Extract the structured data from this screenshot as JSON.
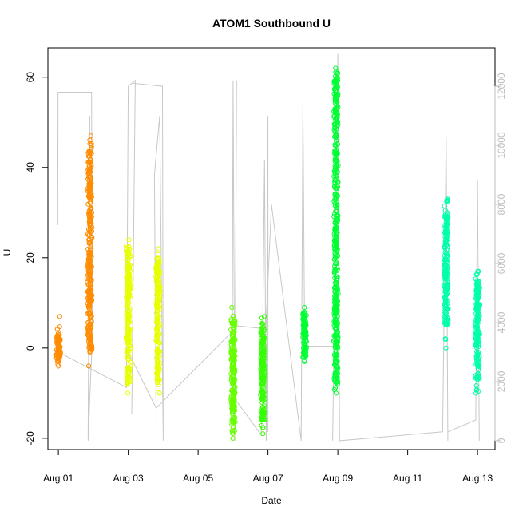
{
  "chart_data": {
    "type": "scatter",
    "title": "ATOM1 Southbound U",
    "xlabel": "Date",
    "ylabel": "U",
    "x_tick_labels": [
      "Aug 01",
      "Aug 03",
      "Aug 05",
      "Aug 07",
      "Aug 09",
      "Aug 11",
      "Aug 13"
    ],
    "x_ticks": [
      1,
      3,
      5,
      7,
      9,
      11,
      13
    ],
    "xlim": [
      0.7,
      13.5
    ],
    "y_ticks": [
      -20,
      0,
      20,
      40,
      60
    ],
    "y_tick_labels": [
      "-20",
      "0",
      "20",
      "40",
      "60"
    ],
    "ylim": [
      -22.5,
      66.5
    ],
    "y2_ticks": [
      0,
      2000,
      4000,
      6000,
      8000,
      10000,
      12000
    ],
    "y2_tick_labels": [
      "0",
      "2000",
      "4000",
      "6000",
      "8000",
      "10000",
      "12000"
    ],
    "y2lim": [
      -300,
      13300
    ],
    "grid": false,
    "legend": "none",
    "series": [
      {
        "color": "#ff8c00",
        "clusters": [
          {
            "x": 1.0,
            "lo": -4,
            "hi": 7,
            "core_lo": -3,
            "core_hi": 3
          },
          {
            "x": 1.9,
            "lo": -4,
            "hi": 47,
            "core_lo": -1,
            "core_hi": 45
          }
        ]
      },
      {
        "color": "#e8ff00",
        "clusters": [
          {
            "x": 3.0,
            "lo": -10,
            "hi": 24,
            "core_lo": -8,
            "core_hi": 22
          },
          {
            "x": 3.85,
            "lo": -10,
            "hi": 22,
            "core_lo": -8,
            "core_hi": 20
          }
        ]
      },
      {
        "color": "#66ff00",
        "clusters": [
          {
            "x": 6.0,
            "lo": -20,
            "hi": 9,
            "core_lo": -17,
            "core_hi": 6
          }
        ]
      },
      {
        "color": "#33ff00",
        "clusters": [
          {
            "x": 6.85,
            "lo": -19,
            "hi": 7,
            "core_lo": -16,
            "core_hi": 5
          }
        ]
      },
      {
        "color": "#00ff33",
        "clusters": [
          {
            "x": 8.05,
            "lo": -3,
            "hi": 9,
            "core_lo": -2,
            "core_hi": 8
          },
          {
            "x": 8.95,
            "lo": -10,
            "hi": 62,
            "core_lo": -8,
            "core_hi": 60
          }
        ]
      },
      {
        "color": "#00ffaa",
        "clusters": [
          {
            "x": 12.1,
            "lo": 0,
            "hi": 33,
            "core_lo": 5,
            "core_hi": 30
          },
          {
            "x": 13.0,
            "lo": -10,
            "hi": 17,
            "core_lo": -7,
            "core_hi": 15
          }
        ]
      }
    ],
    "secondary_series": {
      "color": "#c8c8c8",
      "segments": [
        [
          [
            0.98,
            7300
          ],
          [
            0.99,
            11800
          ],
          [
            1.95,
            11800
          ],
          [
            1.97,
            3500
          ],
          [
            1.85,
            0
          ],
          [
            1.9,
            11000
          ]
        ],
        [
          [
            1.0,
            3000
          ],
          [
            2.95,
            1800
          ],
          [
            3.0,
            12000
          ],
          [
            3.2,
            12200
          ],
          [
            3.1,
            900
          ]
        ],
        [
          [
            3.15,
            12100
          ],
          [
            3.98,
            12000
          ],
          [
            4.0,
            0
          ],
          [
            3.9,
            11000
          ],
          [
            3.75,
            9000
          ],
          [
            3.8,
            500
          ]
        ],
        [
          [
            3.0,
            3000
          ],
          [
            3.8,
            1100
          ],
          [
            5.98,
            3700
          ],
          [
            6.0,
            12200
          ],
          [
            6.05,
            0
          ],
          [
            6.1,
            12200
          ]
        ],
        [
          [
            6.05,
            3900
          ],
          [
            6.85,
            3800
          ],
          [
            6.9,
            9500
          ],
          [
            6.95,
            0
          ],
          [
            7.0,
            11000
          ],
          [
            7.0,
            300
          ]
        ],
        [
          [
            6.0,
            1500
          ],
          [
            6.8,
            200
          ],
          [
            7.1,
            8000
          ],
          [
            7.95,
            0
          ],
          [
            8.0,
            11400
          ],
          [
            8.05,
            3200
          ],
          [
            8.95,
            3200
          ]
        ],
        [
          [
            8.85,
            0
          ],
          [
            9.0,
            13100
          ],
          [
            9.05,
            0
          ],
          [
            12.0,
            300
          ],
          [
            12.1,
            10300
          ],
          [
            12.15,
            0
          ]
        ],
        [
          [
            12.15,
            300
          ],
          [
            12.95,
            700
          ],
          [
            13.0,
            8800
          ],
          [
            13.05,
            0
          ]
        ]
      ]
    }
  }
}
